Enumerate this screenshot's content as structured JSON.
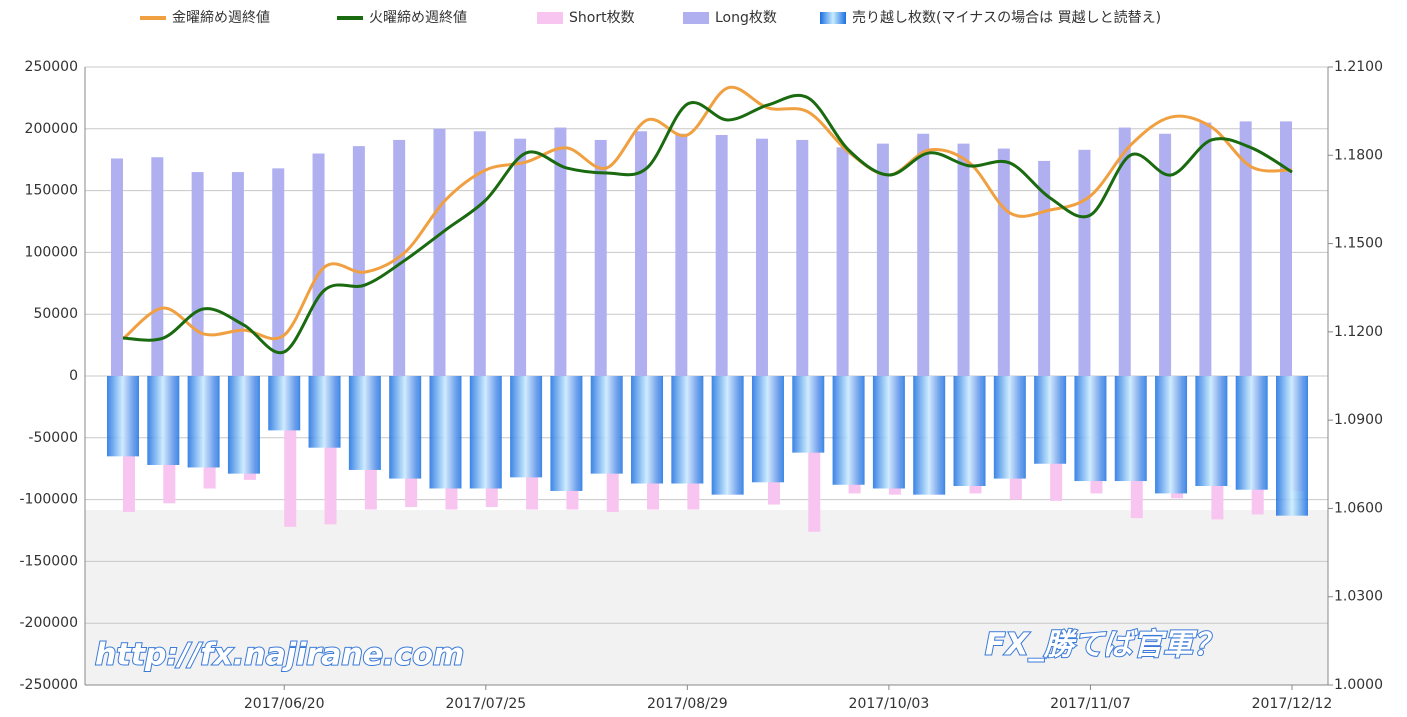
{
  "chart_data": {
    "type": "combo",
    "categories": [
      null,
      null,
      null,
      null,
      "2017/06/20",
      null,
      null,
      null,
      null,
      "2017/07/25",
      null,
      null,
      null,
      null,
      "2017/08/29",
      null,
      null,
      null,
      null,
      "2017/10/03",
      null,
      null,
      null,
      null,
      "2017/11/07",
      null,
      null,
      null,
      null,
      "2017/12/12"
    ],
    "series": [
      {
        "name": "金曜締め週終値",
        "type": "line",
        "axis": "y2",
        "color": "#f0a040",
        "values": [
          1.1176,
          1.1281,
          1.1193,
          1.1206,
          1.1189,
          1.142,
          1.1403,
          1.1471,
          1.1648,
          1.175,
          1.1777,
          1.1825,
          1.1757,
          1.192,
          1.1869,
          1.2029,
          1.1961,
          1.1947,
          1.1811,
          1.1733,
          1.1818,
          1.1774,
          1.1604,
          1.1614,
          1.1662,
          1.1835,
          1.193,
          1.1896,
          1.176,
          1.175
        ]
      },
      {
        "name": "火曜締め週終値",
        "type": "line",
        "axis": "y2",
        "color": "#1a6a10",
        "values": [
          1.1179,
          1.1179,
          1.1278,
          1.1223,
          1.1132,
          1.1342,
          1.1359,
          1.1444,
          1.1546,
          1.1648,
          1.1808,
          1.1757,
          1.174,
          1.1757,
          1.1974,
          1.192,
          1.1971,
          1.1995,
          1.1818,
          1.1733,
          1.1808,
          1.1764,
          1.1774,
          1.1655,
          1.1597,
          1.1801,
          1.1733,
          1.1852,
          1.1825,
          1.1743
        ]
      },
      {
        "name": "Short枚数",
        "type": "bar",
        "slot": "right",
        "color": "#f8c4f0",
        "values": [
          -110000,
          -103000,
          -91000,
          -84000,
          -122000,
          -120000,
          -108000,
          -106000,
          -108000,
          -106000,
          -108000,
          -108000,
          -110000,
          -108000,
          -108000,
          -96000,
          -104000,
          -126000,
          -95000,
          -96000,
          -96000,
          -95000,
          -100000,
          -101000,
          -95000,
          -115000,
          -99000,
          -116000,
          -112000,
          -93000
        ]
      },
      {
        "name": "Long枚数",
        "type": "bar",
        "slot": "left",
        "color": "#b0b0f0",
        "values": [
          176000,
          177000,
          165000,
          165000,
          168000,
          180000,
          186000,
          191000,
          200000,
          198000,
          192000,
          201000,
          191000,
          198000,
          196000,
          195000,
          192000,
          191000,
          185000,
          188000,
          196000,
          188000,
          184000,
          174000,
          183000,
          201000,
          196000,
          205000,
          206000,
          206000
        ]
      },
      {
        "name": "売り越し枚数(マイナスの場合は 買越しと読替え)",
        "type": "bar",
        "slot": "wide",
        "color": "#2a7ae8",
        "values": [
          -65000,
          -72000,
          -74000,
          -79000,
          -44000,
          -58000,
          -76000,
          -83000,
          -91000,
          -91000,
          -82000,
          -93000,
          -79000,
          -87000,
          -87000,
          -96000,
          -86000,
          -62000,
          -88000,
          -91000,
          -96000,
          -89000,
          -83000,
          -71000,
          -85000,
          -85000,
          -95000,
          -89000,
          -92000,
          -113000
        ]
      }
    ],
    "ylim": [
      -250000,
      250000
    ],
    "yticks": [
      -250000,
      -200000,
      -150000,
      -100000,
      -50000,
      0,
      50000,
      100000,
      150000,
      200000,
      250000
    ],
    "y2lim": [
      1.0,
      1.21
    ],
    "y2ticks": [
      {
        "value": 1.0,
        "label": "1.0000"
      },
      {
        "value": 1.03,
        "label": "1.0300"
      },
      {
        "value": 1.06,
        "label": "1.0600"
      },
      {
        "value": 1.09,
        "label": "1.0900"
      },
      {
        "value": 1.12,
        "label": "1.1200"
      },
      {
        "value": 1.15,
        "label": "1.1500"
      },
      {
        "value": 1.18,
        "label": "1.1800"
      },
      {
        "value": 1.21,
        "label": "1.2100"
      }
    ],
    "grid": true,
    "legend": "top",
    "watermarks": [
      "http://fx.najirane.com",
      "FX_勝てば官軍？"
    ]
  }
}
